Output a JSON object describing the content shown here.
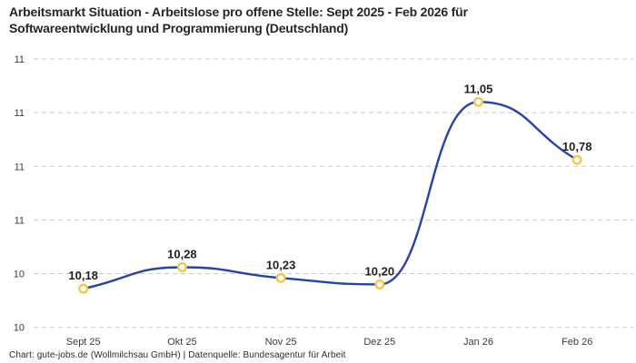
{
  "header": {
    "title": "Arbeitsmarkt Situation - Arbeitslose pro offene Stelle: Sept 2025 - Feb 2026 für Softwareentwicklung und Programmierung (Deutschland)"
  },
  "footer": {
    "attribution": "Chart: gute-jobs.de (Wollmilchsau GmbH) | Datenquelle: Bundesagentur für Arbeit"
  },
  "chart_data": {
    "type": "line",
    "title": "Arbeitsmarkt Situation - Arbeitslose pro offene Stelle: Sept 2025 - Feb 2026 für Softwareentwicklung und Programmierung (Deutschland)",
    "categories": [
      "Sept 25",
      "Okt 25",
      "Nov 25",
      "Dez 25",
      "Jan 26",
      "Feb 26"
    ],
    "values": [
      10.18,
      10.28,
      10.23,
      10.2,
      11.05,
      10.78
    ],
    "value_labels": [
      "10,18",
      "10,28",
      "10,23",
      "10,20",
      "11,05",
      "10,78"
    ],
    "xlabel": "",
    "ylabel": "",
    "ylim": [
      10.0,
      11.25
    ],
    "y_ticks": [
      {
        "value": 10.0,
        "label": "10"
      },
      {
        "value": 10.25,
        "label": "10"
      },
      {
        "value": 10.5,
        "label": "11"
      },
      {
        "value": 10.75,
        "label": "11"
      },
      {
        "value": 11.0,
        "label": "11"
      },
      {
        "value": 11.25,
        "label": "11"
      }
    ],
    "grid": "horizontal-dashed",
    "legend": "none",
    "colors": {
      "line": "#2444A8",
      "marker_ring": "#F8C43D",
      "marker_fill": "#FFFFFF",
      "gridline": "#CBCBCB",
      "title_text": "#262626",
      "axis_text": "#3C3C3C",
      "value_label_text": "#1F1F1F"
    }
  }
}
